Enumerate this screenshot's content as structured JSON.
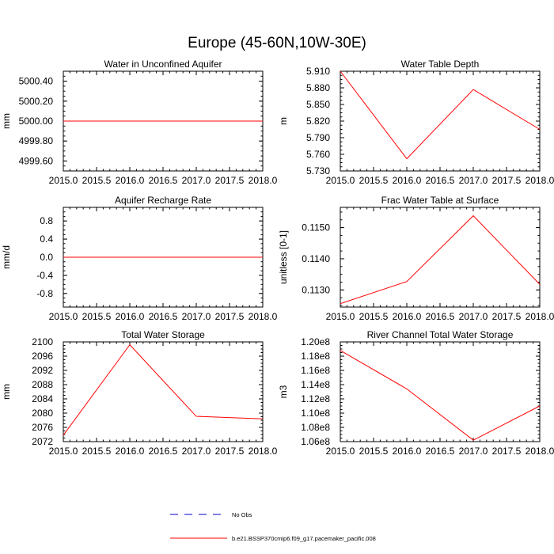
{
  "figure_title": "Europe (45-60N,10W-30E)",
  "colors": {
    "series": "#ff0000",
    "obs": "#0000cc",
    "axis": "#000000"
  },
  "legend": {
    "obs_label": "No Obs",
    "model_label": "b.e21.BSSP370cmip6.f09_g17.pacemaker_pacific.008"
  },
  "chart_data": [
    {
      "type": "line",
      "title": "Water in Unconfined Aquifer",
      "ylabel": "mm",
      "x": [
        2015.0,
        2016.0,
        2017.0,
        2018.0
      ],
      "values": [
        5000.0,
        5000.0,
        5000.0,
        5000.0
      ],
      "xlim": [
        2015.0,
        2018.0
      ],
      "ylim": [
        4999.5,
        5000.5
      ],
      "xticks": [
        "2015.0",
        "2015.5",
        "2016.0",
        "2016.5",
        "2017.0",
        "2017.5",
        "2018.0"
      ],
      "yticks": [
        {
          "v": 4999.6,
          "label": "4999.60"
        },
        {
          "v": 4999.8,
          "label": "4999.80"
        },
        {
          "v": 5000.0,
          "label": "5000.00"
        },
        {
          "v": 5000.2,
          "label": "5000.20"
        },
        {
          "v": 5000.4,
          "label": "5000.40"
        }
      ]
    },
    {
      "type": "line",
      "title": "Water Table Depth",
      "ylabel": "m",
      "x": [
        2015.0,
        2016.0,
        2017.0,
        2018.0
      ],
      "values": [
        5.91,
        5.752,
        5.877,
        5.805
      ],
      "xlim": [
        2015.0,
        2018.0
      ],
      "ylim": [
        5.73,
        5.91
      ],
      "xticks": [
        "2015.0",
        "2015.5",
        "2016.0",
        "2016.5",
        "2017.0",
        "2017.5",
        "2018.0"
      ],
      "yticks": [
        {
          "v": 5.73,
          "label": "5.730"
        },
        {
          "v": 5.76,
          "label": "5.760"
        },
        {
          "v": 5.79,
          "label": "5.790"
        },
        {
          "v": 5.82,
          "label": "5.820"
        },
        {
          "v": 5.85,
          "label": "5.850"
        },
        {
          "v": 5.88,
          "label": "5.880"
        },
        {
          "v": 5.91,
          "label": "5.910"
        }
      ]
    },
    {
      "type": "line",
      "title": "Aquifer Recharge Rate",
      "ylabel": "mm/d",
      "x": [
        2015.0,
        2016.0,
        2017.0,
        2018.0
      ],
      "values": [
        0.0,
        0.0,
        0.0,
        0.0
      ],
      "xlim": [
        2015.0,
        2018.0
      ],
      "ylim": [
        -1.1,
        1.1
      ],
      "xticks": [
        "2015.0",
        "2015.5",
        "2016.0",
        "2016.5",
        "2017.0",
        "2017.5",
        "2018.0"
      ],
      "yticks": [
        {
          "v": -0.8,
          "label": "-0.8"
        },
        {
          "v": -0.4,
          "label": "-0.4"
        },
        {
          "v": 0.0,
          "label": "0.0"
        },
        {
          "v": 0.4,
          "label": "0.4"
        },
        {
          "v": 0.8,
          "label": "0.8"
        }
      ]
    },
    {
      "type": "line",
      "title": "Frac Water Table at Surface",
      "ylabel": "unitless [0-1]",
      "x": [
        2015.0,
        2016.0,
        2017.0,
        2018.0
      ],
      "values": [
        0.11256,
        0.11327,
        0.11538,
        0.11318
      ],
      "xlim": [
        2015.0,
        2018.0
      ],
      "ylim": [
        0.11245,
        0.11565
      ],
      "xticks": [
        "2015.0",
        "2015.5",
        "2016.0",
        "2016.5",
        "2017.0",
        "2017.5",
        "2018.0"
      ],
      "yticks": [
        {
          "v": 0.113,
          "label": "0.1130"
        },
        {
          "v": 0.114,
          "label": "0.1140"
        },
        {
          "v": 0.115,
          "label": "0.1150"
        }
      ]
    },
    {
      "type": "line",
      "title": "Total Water Storage",
      "ylabel": "mm",
      "x": [
        2015.0,
        2016.0,
        2017.0,
        2018.0
      ],
      "values": [
        2073.8,
        2099.2,
        2079.1,
        2078.4
      ],
      "xlim": [
        2015.0,
        2018.0
      ],
      "ylim": [
        2072,
        2100
      ],
      "xticks": [
        "2015.0",
        "2015.5",
        "2016.0",
        "2016.5",
        "2017.0",
        "2017.5",
        "2018.0"
      ],
      "yticks": [
        {
          "v": 2072,
          "label": "2072"
        },
        {
          "v": 2076,
          "label": "2076"
        },
        {
          "v": 2080,
          "label": "2080"
        },
        {
          "v": 2084,
          "label": "2084"
        },
        {
          "v": 2088,
          "label": "2088"
        },
        {
          "v": 2092,
          "label": "2092"
        },
        {
          "v": 2096,
          "label": "2096"
        },
        {
          "v": 2100,
          "label": "2100"
        }
      ]
    },
    {
      "type": "line",
      "title": "River Channel Total Water Storage",
      "ylabel": "m3",
      "x": [
        2015.0,
        2016.0,
        2017.0,
        2018.0
      ],
      "values": [
        118800000.0,
        113400000.0,
        106200000.0,
        111000000.0
      ],
      "xlim": [
        2015.0,
        2018.0
      ],
      "ylim": [
        106000000.0,
        120000000.0
      ],
      "xticks": [
        "2015.0",
        "2015.5",
        "2016.0",
        "2016.5",
        "2017.0",
        "2017.5",
        "2018.0"
      ],
      "yticks": [
        {
          "v": 106000000.0,
          "label": "1.06e8"
        },
        {
          "v": 108000000.0,
          "label": "1.08e8"
        },
        {
          "v": 110000000.0,
          "label": "1.10e8"
        },
        {
          "v": 112000000.0,
          "label": "1.12e8"
        },
        {
          "v": 114000000.0,
          "label": "1.14e8"
        },
        {
          "v": 116000000.0,
          "label": "1.16e8"
        },
        {
          "v": 118000000.0,
          "label": "1.18e8"
        },
        {
          "v": 120000000.0,
          "label": "1.20e8"
        }
      ]
    }
  ]
}
